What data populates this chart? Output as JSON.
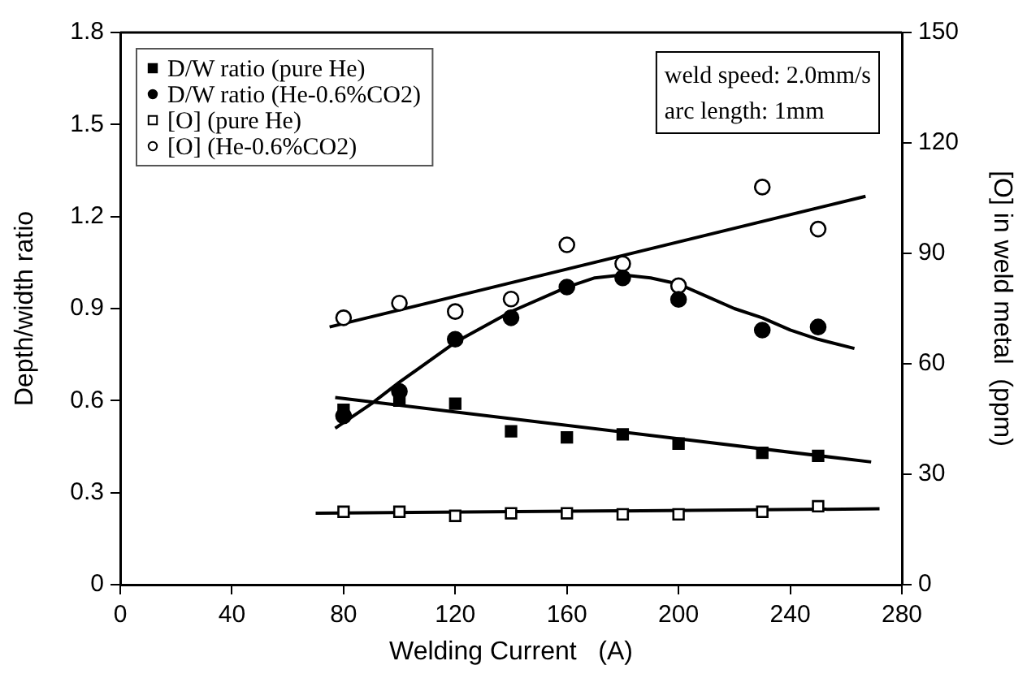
{
  "chart_data": {
    "type": "scatter",
    "xlabel": "Welding Current   (A)",
    "ylabel": "Depth/width ratio",
    "y2label": "[O] in weld metal  (ppm)",
    "x": [
      80,
      100,
      120,
      140,
      160,
      180,
      200,
      230,
      250
    ],
    "series": [
      {
        "name": "D/W ratio (pure He)",
        "color": "#000000",
        "marker": "square",
        "values": [
          0.57,
          0.6,
          0.59,
          0.5,
          0.48,
          0.49,
          0.46,
          0.43,
          0.42
        ]
      },
      {
        "name": "D/W ratio (He-0.6%CO2)",
        "color": "#000000",
        "marker": "circle",
        "values": [
          0.55,
          0.63,
          0.8,
          0.87,
          0.97,
          1.0,
          0.93,
          0.83,
          0.84
        ]
      },
      {
        "name": "[O] (pure He)",
        "color": "#000000",
        "marker": "square",
        "axis": "y2",
        "values": [
          19.8,
          19.8,
          18.7,
          19.4,
          19.4,
          19.1,
          19.1,
          19.8,
          21.3
        ]
      },
      {
        "name": "[O] (He-0.6%CO2)",
        "color": "#000000",
        "marker": "circle",
        "axis": "y2",
        "values": [
          72.5,
          76.5,
          74.2,
          77.6,
          92.3,
          87.2,
          81.2,
          108,
          96.6
        ]
      },
      {
        "type": "line",
        "color": "#000000",
        "x": [
          77,
          269
        ],
        "values": [
          0.61,
          0.4
        ]
      },
      {
        "type": "line",
        "color": "#000000",
        "x": [
          77,
          90,
          100,
          120,
          140,
          160,
          170,
          180,
          190,
          200,
          210,
          220,
          230,
          240,
          250,
          263
        ],
        "values": [
          0.51,
          0.59,
          0.66,
          0.79,
          0.89,
          0.97,
          1.0,
          1.01,
          1.0,
          0.98,
          0.94,
          0.9,
          0.87,
          0.83,
          0.8,
          0.77
        ]
      },
      {
        "type": "line",
        "color": "#000000",
        "axis": "y2",
        "x": [
          70,
          272
        ],
        "values": [
          19.4,
          20.6
        ]
      },
      {
        "type": "line",
        "color": "#000000",
        "axis": "y2",
        "x": [
          75,
          267
        ],
        "values": [
          70,
          105.5
        ]
      }
    ],
    "annotations": [
      "weld speed: 2.0mm/s",
      "arc length: 1mm"
    ],
    "xlim": [
      0,
      280
    ],
    "xticks": [
      0,
      40,
      80,
      120,
      160,
      200,
      240,
      280
    ],
    "ylim": [
      0,
      1.8
    ],
    "yticks": [
      0,
      0.3,
      0.6,
      0.9,
      1.2,
      1.5,
      1.8
    ],
    "y2lim": [
      0,
      150
    ],
    "y2ticks": [
      0,
      30,
      60,
      90,
      120,
      150
    ],
    "grid": false,
    "legend": "top left"
  }
}
